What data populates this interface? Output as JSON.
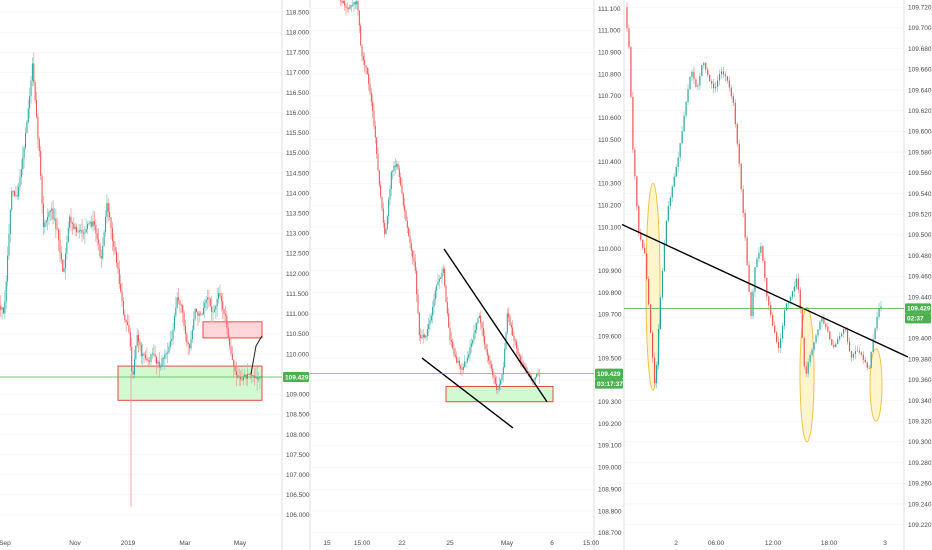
{
  "colors": {
    "up": "#26a69a",
    "down": "#ef5350",
    "up_wick": "#8fd3ca",
    "down_wick": "#f4a0a0",
    "grid": "#f0f3fa",
    "axis_text": "#4a4a4a",
    "price_line": "#4caf50",
    "support_fill": "#c8f7c5",
    "support_stroke": "#e53935",
    "resist_fill": "#ffcdd2",
    "ellipse_fill": "#fff3c4",
    "ellipse_stroke": "#f0c24b",
    "trendline": "#000000",
    "badge": "#4caf50"
  },
  "chart_data": [
    {
      "type": "candlestick",
      "name": "panel-weekly",
      "ylim": [
        105.75,
        118.75
      ],
      "y_ticks": [
        "118.500",
        "118.000",
        "117.500",
        "117.000",
        "116.500",
        "116.000",
        "115.500",
        "115.000",
        "114.500",
        "114.000",
        "113.500",
        "113.000",
        "112.500",
        "112.000",
        "111.500",
        "111.000",
        "110.500",
        "110.000",
        "109.500",
        "109.000",
        "108.500",
        "108.000",
        "107.500",
        "107.000",
        "106.500",
        "106.000"
      ],
      "x_ticks": [
        "Sep",
        "Nov",
        "2019",
        "Mar",
        "May"
      ],
      "last_price_label": "109.429",
      "last_price": 109.429,
      "series": {
        "count": 190,
        "anchors": [
          [
            0,
            111.2
          ],
          [
            5,
            111.0
          ],
          [
            12,
            114.0
          ],
          [
            18,
            113.9
          ],
          [
            24,
            115.0
          ],
          [
            30,
            116.3
          ],
          [
            33,
            117.2
          ],
          [
            36,
            116.2
          ],
          [
            40,
            115.0
          ],
          [
            44,
            113.2
          ],
          [
            52,
            113.6
          ],
          [
            58,
            113.0
          ],
          [
            64,
            112.0
          ],
          [
            70,
            113.4
          ],
          [
            78,
            113.0
          ],
          [
            86,
            113.1
          ],
          [
            95,
            113.3
          ],
          [
            102,
            112.3
          ],
          [
            108,
            113.8
          ],
          [
            112,
            113.0
          ],
          [
            118,
            112.2
          ],
          [
            124,
            111.0
          ],
          [
            130,
            110.5
          ],
          [
            133,
            109.4
          ],
          [
            138,
            110.5
          ],
          [
            142,
            110.0
          ],
          [
            148,
            109.8
          ],
          [
            154,
            110.0
          ],
          [
            160,
            109.7
          ],
          [
            166,
            110.0
          ],
          [
            172,
            110.3
          ],
          [
            178,
            111.4
          ],
          [
            182,
            111.2
          ],
          [
            186,
            110.5
          ],
          [
            190,
            110.1
          ],
          [
            196,
            111.1
          ],
          [
            202,
            110.9
          ],
          [
            208,
            111.4
          ],
          [
            214,
            111.0
          ],
          [
            220,
            111.5
          ],
          [
            226,
            110.9
          ],
          [
            232,
            110.0
          ],
          [
            236,
            109.5
          ],
          [
            240,
            109.4
          ],
          [
            245,
            109.43
          ]
        ],
        "x_range": [
          0,
          262
        ],
        "volatility": 0.32,
        "seed": 7
      },
      "zones": [
        {
          "kind": "support",
          "y1": 108.85,
          "y2": 109.7,
          "x1": 118,
          "x2": 262
        },
        {
          "kind": "resistance",
          "y1": 110.4,
          "y2": 110.8,
          "x1": 203,
          "x2": 262
        }
      ],
      "projection": [
        [
          251,
          109.5
        ],
        [
          256,
          110.2
        ],
        [
          262,
          110.45
        ]
      ]
    },
    {
      "type": "candlestick",
      "name": "panel-4h",
      "ylim": [
        108.69,
        111.13
      ],
      "y_ticks": [
        "111.100",
        "111.000",
        "110.900",
        "110.800",
        "110.700",
        "110.600",
        "110.500",
        "110.400",
        "110.300",
        "110.200",
        "110.100",
        "110.000",
        "109.900",
        "109.800",
        "109.700",
        "109.600",
        "109.500",
        "109.400",
        "109.300",
        "109.200",
        "109.100",
        "109.000",
        "108.900",
        "108.800",
        "108.700"
      ],
      "x_ticks": [
        "15",
        "15:00",
        "22",
        "25",
        "May",
        "6",
        "15:00"
      ],
      "last_price_label": "109.429",
      "timer_label": "03:17:37",
      "last_price": 109.429,
      "series": {
        "count": 150,
        "anchors": [
          [
            340,
            111.15
          ],
          [
            348,
            111.1
          ],
          [
            358,
            111.13
          ],
          [
            362,
            110.9
          ],
          [
            368,
            110.8
          ],
          [
            374,
            110.6
          ],
          [
            378,
            110.4
          ],
          [
            382,
            110.2
          ],
          [
            386,
            110.05
          ],
          [
            392,
            110.35
          ],
          [
            398,
            110.4
          ],
          [
            404,
            110.2
          ],
          [
            410,
            110.05
          ],
          [
            416,
            109.9
          ],
          [
            420,
            109.6
          ],
          [
            426,
            109.6
          ],
          [
            432,
            109.7
          ],
          [
            438,
            109.85
          ],
          [
            444,
            109.9
          ],
          [
            450,
            109.6
          ],
          [
            456,
            109.5
          ],
          [
            462,
            109.45
          ],
          [
            468,
            109.5
          ],
          [
            474,
            109.6
          ],
          [
            480,
            109.7
          ],
          [
            486,
            109.55
          ],
          [
            492,
            109.45
          ],
          [
            498,
            109.35
          ],
          [
            504,
            109.45
          ],
          [
            508,
            109.7
          ],
          [
            514,
            109.6
          ],
          [
            520,
            109.5
          ],
          [
            526,
            109.45
          ],
          [
            532,
            109.4
          ],
          [
            538,
            109.42
          ]
        ],
        "x_range": [
          340,
          540
        ],
        "volatility": 0.04,
        "seed": 13
      },
      "zones": [
        {
          "kind": "support",
          "y1": 109.3,
          "y2": 109.37,
          "x1": 446,
          "x2": 553
        }
      ],
      "trendlines": [
        [
          [
            444,
            110.0
          ],
          [
            547,
            109.3
          ]
        ],
        [
          [
            422,
            109.5
          ],
          [
            513,
            109.18
          ]
        ]
      ]
    },
    {
      "type": "candlestick",
      "name": "panel-15m",
      "ylim": [
        109.21,
        109.725
      ],
      "y_ticks": [
        "109.720",
        "109.700",
        "109.680",
        "109.660",
        "109.640",
        "109.620",
        "109.600",
        "109.580",
        "109.560",
        "109.540",
        "109.520",
        "109.500",
        "109.480",
        "109.460",
        "109.440",
        "109.420",
        "109.400",
        "109.380",
        "109.360",
        "109.340",
        "109.320",
        "109.300",
        "109.280",
        "109.260",
        "109.240",
        "109.220"
      ],
      "x_ticks": [
        "2",
        "06:00",
        "12:00",
        "18:00",
        "3"
      ],
      "last_price_label": "109.429",
      "timer_label": "02:37",
      "last_price": 109.429,
      "series": {
        "count": 130,
        "anchors": [
          [
            626,
            109.72
          ],
          [
            630,
            109.68
          ],
          [
            634,
            109.58
          ],
          [
            640,
            109.5
          ],
          [
            646,
            109.48
          ],
          [
            652,
            109.4
          ],
          [
            656,
            109.35
          ],
          [
            662,
            109.45
          ],
          [
            668,
            109.52
          ],
          [
            674,
            109.55
          ],
          [
            680,
            109.58
          ],
          [
            686,
            109.62
          ],
          [
            692,
            109.66
          ],
          [
            698,
            109.64
          ],
          [
            704,
            109.67
          ],
          [
            710,
            109.65
          ],
          [
            716,
            109.64
          ],
          [
            722,
            109.66
          ],
          [
            728,
            109.65
          ],
          [
            734,
            109.63
          ],
          [
            740,
            109.57
          ],
          [
            746,
            109.5
          ],
          [
            752,
            109.42
          ],
          [
            756,
            109.47
          ],
          [
            762,
            109.49
          ],
          [
            768,
            109.44
          ],
          [
            774,
            109.41
          ],
          [
            780,
            109.39
          ],
          [
            786,
            109.43
          ],
          [
            792,
            109.44
          ],
          [
            798,
            109.46
          ],
          [
            802,
            109.42
          ],
          [
            806,
            109.36
          ],
          [
            810,
            109.38
          ],
          [
            816,
            109.4
          ],
          [
            822,
            109.42
          ],
          [
            828,
            109.41
          ],
          [
            834,
            109.39
          ],
          [
            840,
            109.4
          ],
          [
            846,
            109.41
          ],
          [
            852,
            109.38
          ],
          [
            858,
            109.39
          ],
          [
            864,
            109.38
          ],
          [
            870,
            109.37
          ],
          [
            874,
            109.4
          ],
          [
            880,
            109.43
          ]
        ],
        "x_range": [
          626,
          882
        ],
        "volatility": 0.006,
        "seed": 29
      },
      "ellipses": [
        {
          "cx": 653,
          "cy": 109.45,
          "rx": 7,
          "ry": 0.1
        },
        {
          "cx": 807,
          "cy": 109.365,
          "rx": 7,
          "ry": 0.065
        },
        {
          "cx": 876,
          "cy": 109.355,
          "rx": 6,
          "ry": 0.035
        }
      ],
      "trendlines": [
        [
          [
            622,
            109.51
          ],
          [
            908,
            109.382
          ]
        ]
      ]
    }
  ]
}
